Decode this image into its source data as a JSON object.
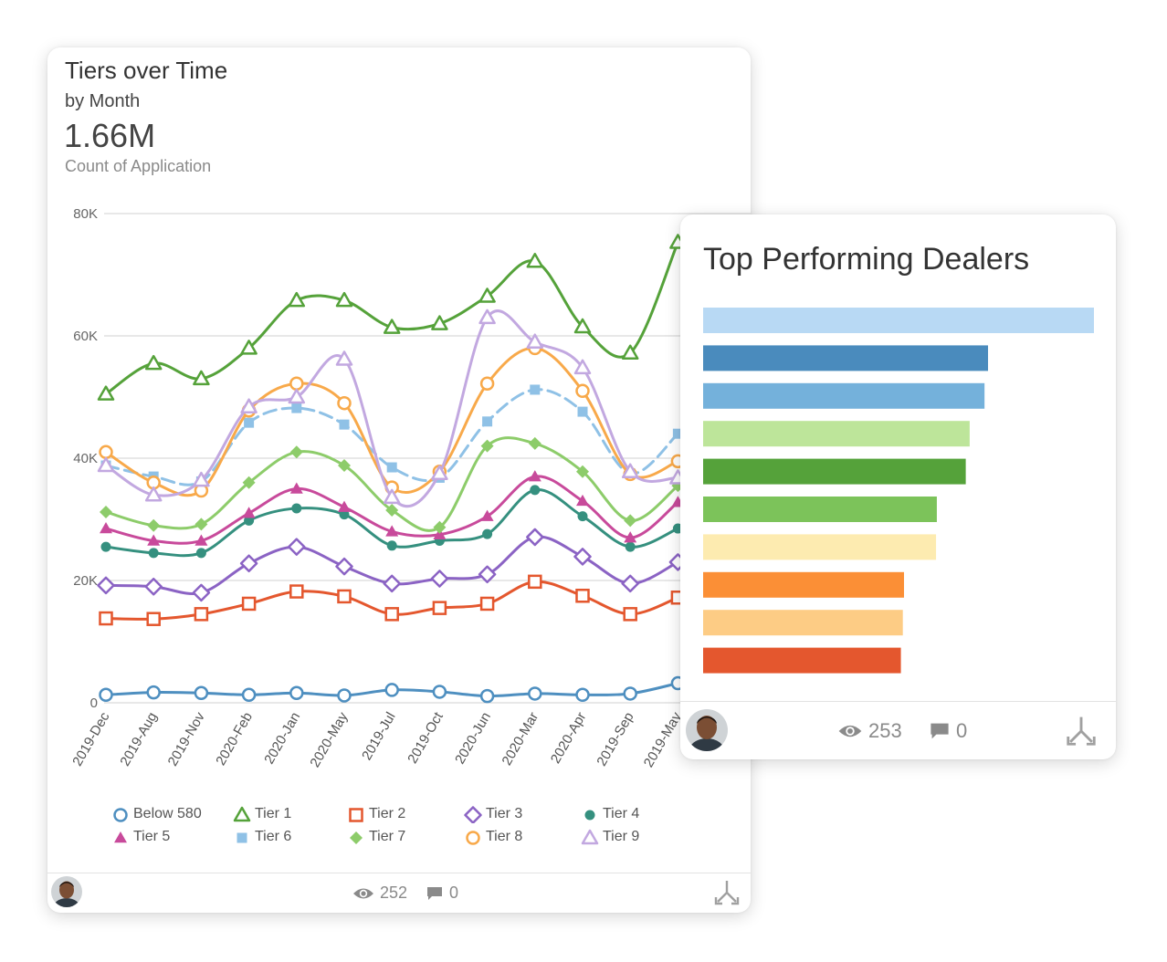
{
  "left_card": {
    "title": "Tiers over Time",
    "subtitle": "by Month",
    "big_number": "1.66M",
    "measure_label": "Count of Application",
    "views": "252",
    "comments": "0"
  },
  "right_card": {
    "title": "Top Performing Dealers",
    "views": "253",
    "comments": "0"
  },
  "chart_data": [
    {
      "type": "line",
      "title": "Tiers over Time",
      "subtitle": "by Month",
      "categories": [
        "2019-Dec",
        "2019-Aug",
        "2019-Nov",
        "2020-Feb",
        "2020-Jan",
        "2020-May",
        "2019-Jul",
        "2019-Oct",
        "2020-Jun",
        "2020-Mar",
        "2020-Apr",
        "2019-Sep",
        "2019-May"
      ],
      "y_ticks": [
        "0",
        "20K",
        "40K",
        "60K",
        "80K"
      ],
      "ylim": [
        0,
        80000
      ],
      "grid": true,
      "legend_position": "bottom",
      "series": [
        {
          "name": "Below 580",
          "color": "#4e8fc0",
          "marker": "circle-open",
          "values": [
            1300,
            1700,
            1600,
            1300,
            1600,
            1200,
            2100,
            1800,
            1100,
            1500,
            1300,
            1500,
            3200
          ]
        },
        {
          "name": "Tier 1",
          "color": "#55a23a",
          "marker": "triangle-open",
          "values": [
            50500,
            55500,
            53000,
            58000,
            65800,
            65800,
            61400,
            62000,
            66500,
            72200,
            61500,
            57200,
            75300
          ]
        },
        {
          "name": "Tier 2",
          "color": "#e4572e",
          "marker": "square-open",
          "values": [
            13800,
            13700,
            14500,
            16200,
            18200,
            17400,
            14500,
            15500,
            16200,
            19800,
            17500,
            14500,
            17200
          ]
        },
        {
          "name": "Tier 3",
          "color": "#8b63c4",
          "marker": "diamond-open",
          "values": [
            19200,
            19000,
            18000,
            22800,
            25500,
            22300,
            19500,
            20300,
            21000,
            27100,
            23900,
            19500,
            23000
          ]
        },
        {
          "name": "Tier 4",
          "color": "#35907f",
          "marker": "circle-filled",
          "values": [
            25500,
            24500,
            24500,
            29800,
            31800,
            30800,
            25700,
            26500,
            27600,
            34800,
            30500,
            25500,
            28500
          ]
        },
        {
          "name": "Tier 5",
          "color": "#c84a9b",
          "marker": "triangle-filled",
          "values": [
            28500,
            26500,
            26500,
            31000,
            35000,
            32000,
            28000,
            27500,
            30500,
            37000,
            33000,
            27000,
            32800
          ]
        },
        {
          "name": "Tier 6",
          "color": "#8fc1e6",
          "marker": "square-filled",
          "values": [
            38800,
            37000,
            36200,
            45800,
            48200,
            45500,
            38500,
            36800,
            46000,
            51200,
            47600,
            37500,
            44000
          ]
        },
        {
          "name": "Tier 7",
          "color": "#8dcc6a",
          "marker": "diamond-filled",
          "values": [
            31200,
            29000,
            29200,
            36000,
            41000,
            38800,
            31500,
            28700,
            42000,
            42400,
            37800,
            29800,
            35500
          ]
        },
        {
          "name": "Tier 8",
          "color": "#f8a94a",
          "marker": "circle-open",
          "values": [
            41000,
            36000,
            34700,
            47800,
            52200,
            49000,
            35200,
            37800,
            52200,
            58000,
            51000,
            37400,
            39500
          ]
        },
        {
          "name": "Tier 9",
          "color": "#c2a8e0",
          "marker": "triangle-open",
          "values": [
            38800,
            34000,
            36400,
            48400,
            50000,
            56200,
            33600,
            37500,
            63000,
            59000,
            54800,
            37800,
            36800
          ]
        }
      ]
    },
    {
      "type": "bar",
      "orientation": "horizontal",
      "title": "Top Performing Dealers",
      "values": [
        100,
        72.9,
        72.0,
        68.2,
        67.2,
        59.8,
        59.6,
        51.4,
        51.1,
        50.6
      ],
      "colors": [
        "#b8d9f4",
        "#4a8bbd",
        "#74b1db",
        "#bde59a",
        "#55a23a",
        "#7cc35a",
        "#fdebb0",
        "#fb8f36",
        "#fdcc85",
        "#e4572e"
      ]
    }
  ]
}
